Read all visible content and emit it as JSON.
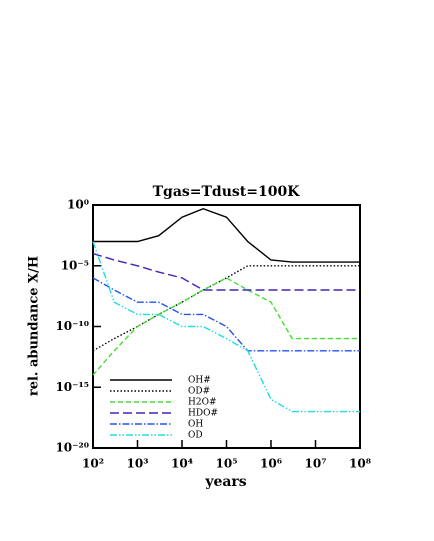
{
  "chart_data": {
    "type": "line",
    "title": "Tgas=Tdust=100K",
    "x_label": "years",
    "y_label": "rel. abundance X/H",
    "log_x": true,
    "log_y": true,
    "x": [
      100,
      300,
      1000,
      3000,
      10000,
      30000,
      100000,
      300000,
      1000000,
      3000000,
      10000000,
      30000000,
      100000000
    ],
    "xlim": [
      100,
      100000000
    ],
    "xticks": [
      {
        "value": 100,
        "label": "10²"
      },
      {
        "value": 1000,
        "label": "10³"
      },
      {
        "value": 10000,
        "label": "10⁴"
      },
      {
        "value": 100000,
        "label": "10⁵"
      },
      {
        "value": 1000000,
        "label": "10⁶"
      },
      {
        "value": 10000000,
        "label": "10⁷"
      },
      {
        "value": 100000000,
        "label": "10⁸"
      }
    ],
    "ylim": [
      1e-20,
      1
    ],
    "yticks": [
      {
        "value": 1,
        "label": "10⁰"
      },
      {
        "value": 1e-05,
        "label": "10⁻⁵"
      },
      {
        "value": 1e-10,
        "label": "10⁻¹⁰"
      },
      {
        "value": 1e-15,
        "label": "10⁻¹⁵"
      },
      {
        "value": 1e-20,
        "label": "10⁻²⁰"
      }
    ],
    "legend": "lower left",
    "series": [
      {
        "name": "OH#",
        "color": "#000000",
        "style": "solid",
        "values": [
          0.001,
          0.001,
          0.001,
          0.003,
          0.1,
          0.5,
          0.1,
          0.001,
          3e-05,
          2e-05,
          2e-05,
          2e-05,
          2e-05
        ]
      },
      {
        "name": "OD#",
        "color": "#000000",
        "style": "dotted",
        "values": [
          1e-12,
          1e-11,
          1e-10,
          1e-09,
          1e-08,
          1e-07,
          1e-06,
          1e-05,
          1e-05,
          1e-05,
          1e-05,
          1e-05,
          1e-05
        ]
      },
      {
        "name": "H2O#",
        "color": "#44dd33",
        "style": "dashed",
        "values": [
          1e-14,
          1e-12,
          1e-10,
          1e-09,
          1e-08,
          1e-07,
          1e-06,
          1e-07,
          1e-08,
          1e-11,
          1e-11,
          1e-11,
          1e-11
        ]
      },
      {
        "name": "HDO#",
        "color": "#4422bb",
        "style": "longdash",
        "values": [
          0.0001,
          3e-05,
          1e-05,
          3e-06,
          1e-06,
          1e-07,
          1e-07,
          1e-07,
          1e-07,
          1e-07,
          1e-07,
          1e-07,
          1e-07
        ]
      },
      {
        "name": "OH",
        "color": "#2255ee",
        "style": "dashdot",
        "values": [
          1e-06,
          1e-07,
          1e-08,
          1e-08,
          1e-09,
          1e-09,
          1e-10,
          1e-12,
          1e-12,
          1e-12,
          1e-12,
          1e-12,
          1e-12
        ]
      },
      {
        "name": "OD",
        "color": "#22dddd",
        "style": "dashdotdot",
        "values": [
          0.001,
          1e-08,
          1e-09,
          1e-09,
          1e-10,
          1e-10,
          1e-11,
          1e-12,
          1e-16,
          1e-17,
          1e-17,
          1e-17,
          1e-17
        ]
      }
    ]
  }
}
